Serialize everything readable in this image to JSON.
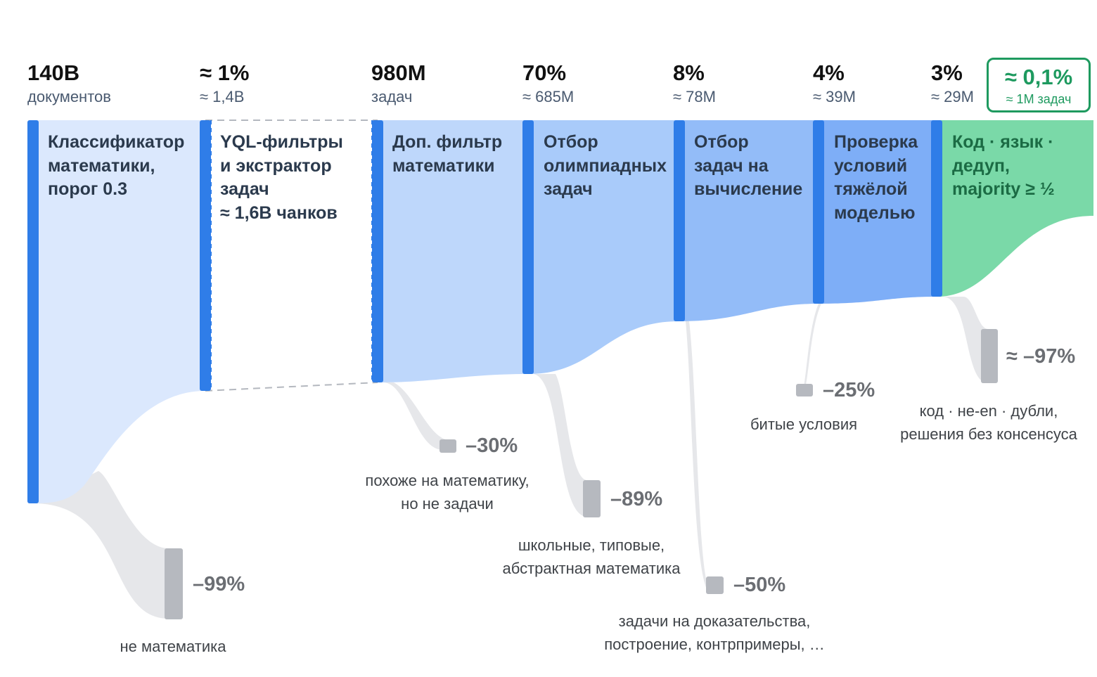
{
  "stages": [
    {
      "value": "140B",
      "sub": "документов",
      "label": [
        "Классификатор",
        "математики,",
        "порог 0.3"
      ]
    },
    {
      "value": "≈ 1%",
      "sub": "≈ 1,4B",
      "label": [
        "YQL-фильтры",
        "и экстрактор",
        "задач",
        "≈ 1,6B чанков"
      ]
    },
    {
      "value": "980M",
      "sub": "задач",
      "label": [
        "Доп. фильтр",
        "математики"
      ]
    },
    {
      "value": "70%",
      "sub": "≈ 685M",
      "label": [
        "Отбор",
        "олимпиадных",
        "задач"
      ]
    },
    {
      "value": "8%",
      "sub": "≈ 78M",
      "label": [
        "Отбор",
        "задач на",
        "вычисление"
      ]
    },
    {
      "value": "4%",
      "sub": "≈ 39M",
      "label": [
        "Проверка",
        "условий",
        "тяжёлой",
        "моделью"
      ]
    },
    {
      "value": "3%",
      "sub": "≈ 29M",
      "label": [
        "Код · язык ·",
        "дедуп,",
        "majority ≥ ½"
      ]
    }
  ],
  "final": {
    "value": "≈ 0,1%",
    "sub": "≈ 1M задач"
  },
  "drops": [
    {
      "pct": "–99%",
      "desc": [
        "не математика"
      ]
    },
    {
      "pct": "–30%",
      "desc": [
        "похоже на математику,",
        "но не задачи"
      ]
    },
    {
      "pct": "–89%",
      "desc": [
        "школьные, типовые,",
        "абстрактная математика"
      ]
    },
    {
      "pct": "–50%",
      "desc": [
        "задачи на доказательства,",
        "построение, контрпримеры, …"
      ]
    },
    {
      "pct": "–25%",
      "desc": [
        "битые условия"
      ]
    },
    {
      "pct": "≈ –97%",
      "desc": [
        "код · не-en · дубли,",
        "решения без консенсуса"
      ]
    }
  ],
  "colors": {
    "stage_bar": "#2f7de8",
    "stage_fills": [
      "#dbe8fd",
      "#ffffff",
      "#bed7fb",
      "#a9cbfa",
      "#93bcf8",
      "#7eaef7",
      "#7ad9a8"
    ],
    "drop_flow": "#e6e7ea",
    "drop_node": "#b6b9bf",
    "final_accent": "#1e9a5f"
  }
}
